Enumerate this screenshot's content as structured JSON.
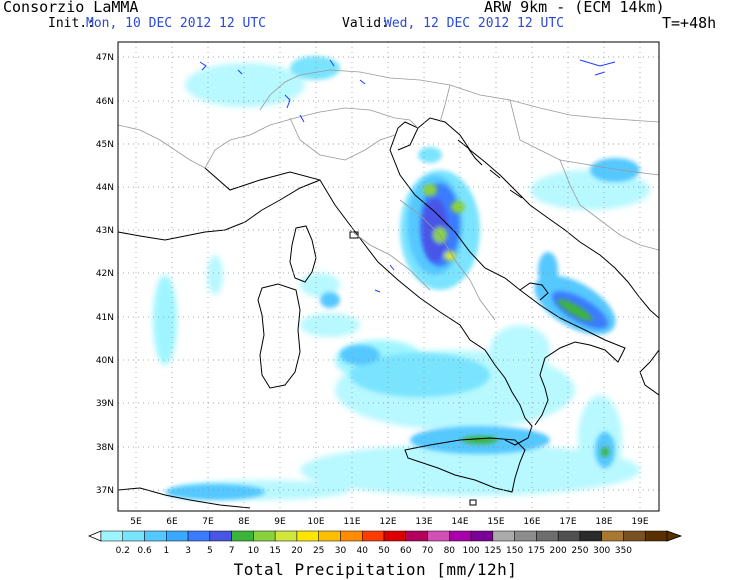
{
  "header": {
    "org": "Consorzio LaMMA",
    "model": "ARW 9km - (ECM 14km)",
    "init_label": "Init.:",
    "init_value": "Mon, 10 DEC 2012  12 UTC",
    "valid_label": "Valid:",
    "valid_value": "Wed, 12 DEC 2012  12 UTC",
    "lead": "T=+48h"
  },
  "map": {
    "lat_ticks": [
      "47N",
      "46N",
      "45N",
      "44N",
      "43N",
      "42N",
      "41N",
      "40N",
      "39N",
      "38N",
      "37N"
    ],
    "lon_ticks": [
      "5E",
      "6E",
      "7E",
      "8E",
      "9E",
      "10E",
      "11E",
      "12E",
      "13E",
      "14E",
      "15E",
      "16E",
      "17E",
      "18E",
      "19E"
    ],
    "grid": "dotted",
    "colors": {
      "coast": "#000000",
      "borders": "#888888",
      "lakes": "#1a3cff"
    }
  },
  "colorbar": {
    "label": "Total Precipitation [mm/12h]",
    "ticks": [
      "0.2",
      "0.6",
      "1",
      "3",
      "5",
      "7",
      "10",
      "15",
      "20",
      "25",
      "30",
      "40",
      "50",
      "60",
      "70",
      "80",
      "100",
      "125",
      "150",
      "175",
      "200",
      "250",
      "300",
      "350"
    ],
    "colors": [
      "#9ff5ff",
      "#7ae4ff",
      "#55c8ff",
      "#3aa8ff",
      "#3a7cff",
      "#4a55e8",
      "#3cb43c",
      "#8ad23c",
      "#d2e63c",
      "#ffe600",
      "#ffbe00",
      "#ff8c00",
      "#ff3c00",
      "#dc0000",
      "#b4005a",
      "#d250b4",
      "#aa00aa",
      "#7a0096",
      "#aaaaaa",
      "#8c8c8c",
      "#6e6e6e",
      "#505050",
      "#2a2a2a",
      "#a87830",
      "#7a5020",
      "#5a3000"
    ]
  }
}
